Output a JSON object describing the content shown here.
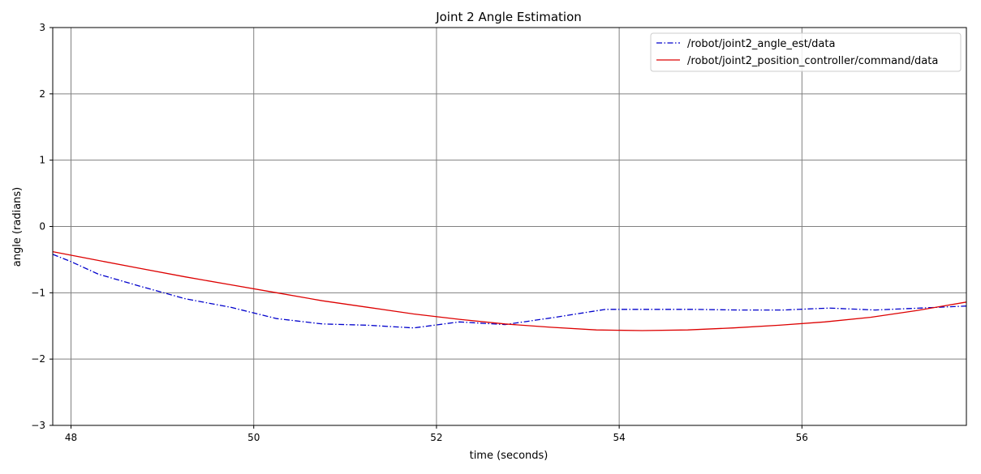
{
  "chart_data": {
    "type": "line",
    "title": "Joint 2 Angle Estimation",
    "xlabel": "time (seconds)",
    "ylabel": "angle (radians)",
    "xlim": [
      47.8,
      57.8
    ],
    "ylim": [
      -3,
      3
    ],
    "xticks": [
      48,
      50,
      52,
      54,
      56
    ],
    "yticks": [
      -3,
      -2,
      -1,
      0,
      1,
      2,
      3
    ],
    "xtick_labels": [
      "48",
      "50",
      "52",
      "54",
      "56"
    ],
    "ytick_labels": [
      "−3",
      "−2",
      "−1",
      "0",
      "1",
      "2",
      "3"
    ],
    "grid": true,
    "legend_position": "top-right",
    "series": [
      {
        "name": "/robot/joint2_angle_est/data",
        "color": "#0000cc",
        "linestyle": "dashdot",
        "x": [
          47.8,
          48.0,
          48.3,
          48.75,
          49.25,
          49.75,
          50.25,
          50.75,
          51.25,
          51.75,
          52.25,
          52.75,
          53.3,
          53.85,
          54.3,
          54.8,
          55.3,
          55.8,
          56.3,
          56.8,
          57.3,
          57.8
        ],
        "y": [
          -0.42,
          -0.53,
          -0.72,
          -0.9,
          -1.09,
          -1.22,
          -1.39,
          -1.47,
          -1.49,
          -1.53,
          -1.44,
          -1.48,
          -1.37,
          -1.25,
          -1.25,
          -1.25,
          -1.26,
          -1.26,
          -1.23,
          -1.26,
          -1.23,
          -1.2
        ]
      },
      {
        "name": "/robot/joint2_position_controller/command/data",
        "color": "#dd0000",
        "linestyle": "solid",
        "x": [
          47.8,
          48.25,
          48.75,
          49.25,
          49.75,
          50.25,
          50.75,
          51.25,
          51.75,
          52.25,
          52.75,
          53.25,
          53.75,
          54.25,
          54.75,
          55.25,
          55.75,
          56.25,
          56.75,
          57.25,
          57.8
        ],
        "y": [
          -0.38,
          -0.5,
          -0.63,
          -0.76,
          -0.88,
          -1.0,
          -1.12,
          -1.22,
          -1.32,
          -1.4,
          -1.47,
          -1.52,
          -1.56,
          -1.57,
          -1.56,
          -1.53,
          -1.49,
          -1.44,
          -1.37,
          -1.27,
          -1.14
        ]
      }
    ]
  }
}
